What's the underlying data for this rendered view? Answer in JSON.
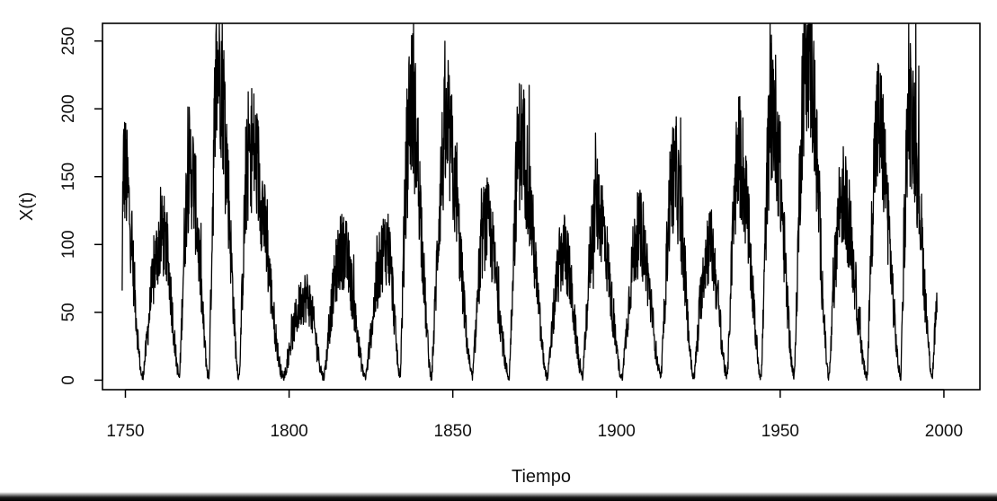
{
  "chart_data": {
    "type": "line",
    "title": "",
    "xlabel": "Tiempo",
    "ylabel": "X(t)",
    "xlim": [
      1743,
      2011
    ],
    "ylim": [
      -7,
      263
    ],
    "xticks": [
      1750,
      1800,
      1850,
      1900,
      1950,
      2000
    ],
    "yticks": [
      0,
      50,
      100,
      150,
      200,
      250
    ],
    "xtick_labels": [
      "1750",
      "1800",
      "1850",
      "1900",
      "1950",
      "2000"
    ],
    "ytick_labels": [
      "0",
      "50",
      "100",
      "150",
      "200",
      "250"
    ],
    "grid": false,
    "line_color": "#000000",
    "series": [
      {
        "cycle_minima_years": [
          1749.0,
          1755.2,
          1766.5,
          1775.5,
          1784.7,
          1798.3,
          1810.6,
          1823.3,
          1833.9,
          1843.5,
          1856.0,
          1867.2,
          1878.9,
          1889.6,
          1901.7,
          1913.6,
          1923.6,
          1933.8,
          1944.2,
          1954.3,
          1964.9,
          1976.5,
          1986.8,
          1996.5
        ],
        "cycle_maxima": [
          {
            "year": 1749.3,
            "value": 158
          },
          {
            "year": 1761.5,
            "value": 106
          },
          {
            "year": 1769.7,
            "value": 158
          },
          {
            "year": 1778.4,
            "value": 238
          },
          {
            "year": 1788.1,
            "value": 174
          },
          {
            "year": 1805.2,
            "value": 62
          },
          {
            "year": 1816.4,
            "value": 96
          },
          {
            "year": 1829.9,
            "value": 100
          },
          {
            "year": 1837.2,
            "value": 206
          },
          {
            "year": 1848.1,
            "value": 180
          },
          {
            "year": 1860.1,
            "value": 116
          },
          {
            "year": 1870.6,
            "value": 176
          },
          {
            "year": 1883.9,
            "value": 95
          },
          {
            "year": 1894.1,
            "value": 129
          },
          {
            "year": 1907.0,
            "value": 108
          },
          {
            "year": 1917.6,
            "value": 154
          },
          {
            "year": 1928.4,
            "value": 100
          },
          {
            "year": 1937.4,
            "value": 165
          },
          {
            "year": 1947.5,
            "value": 201
          },
          {
            "year": 1958.2,
            "value": 253
          },
          {
            "year": 1968.9,
            "value": 136
          },
          {
            "year": 1979.9,
            "value": 188
          },
          {
            "year": 1989.6,
            "value": 200
          }
        ],
        "last_point": {
          "year": 1997.9,
          "value": 50
        }
      }
    ]
  }
}
